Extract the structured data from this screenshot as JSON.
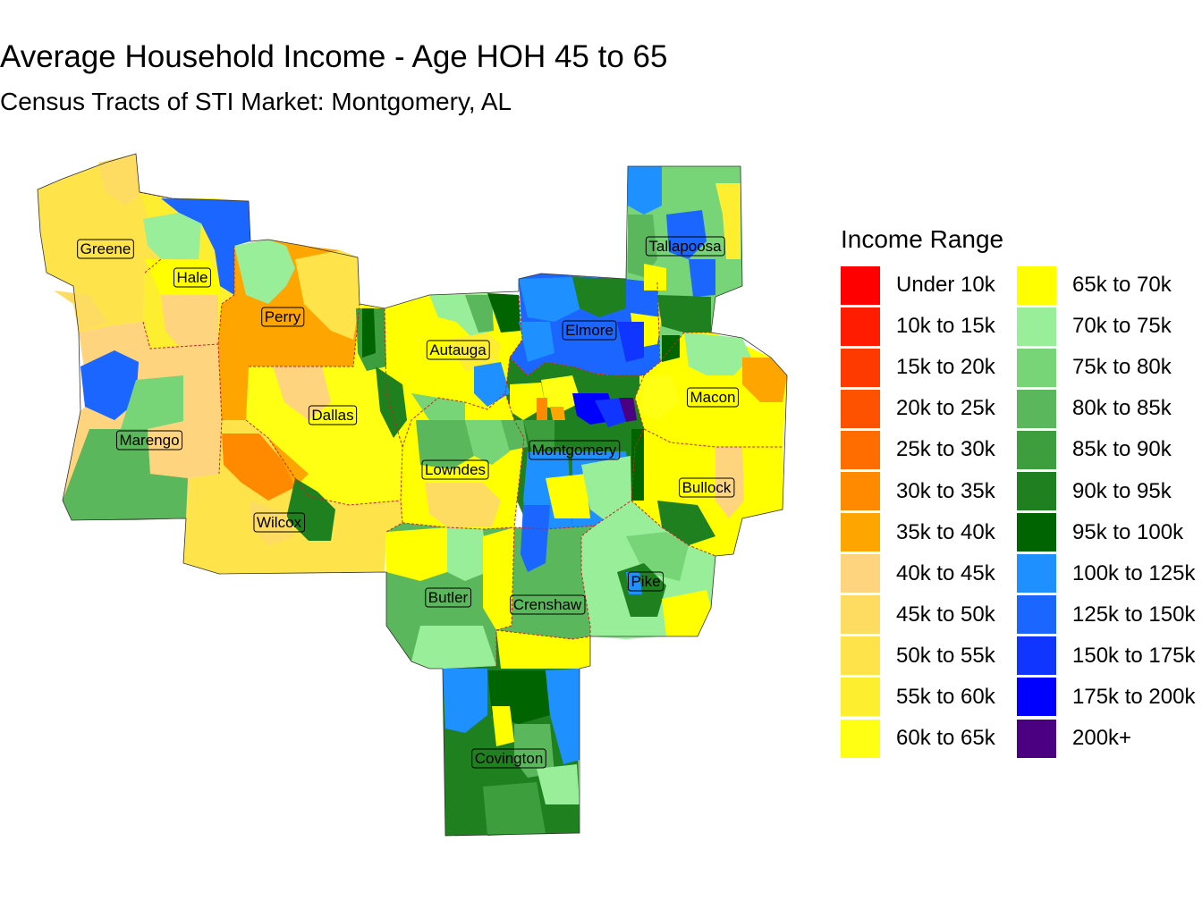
{
  "title": "Average Household Income - Age HOH 45 to 65",
  "subtitle": "Census Tracts of STI Market: Montgomery, AL",
  "legend": {
    "title": "Income Range",
    "items": [
      {
        "label": "Under 10k",
        "color": "#ff0000"
      },
      {
        "label": "10k to 15k",
        "color": "#ff1c00"
      },
      {
        "label": "15k to 20k",
        "color": "#ff3a00"
      },
      {
        "label": "20k to 25k",
        "color": "#ff5200"
      },
      {
        "label": "25k to 30k",
        "color": "#ff6c00"
      },
      {
        "label": "30k to 35k",
        "color": "#ff8a00"
      },
      {
        "label": "35k to 40k",
        "color": "#ffa500"
      },
      {
        "label": "40k to 45k",
        "color": "#fed47f"
      },
      {
        "label": "45k to 50k",
        "color": "#fedc62"
      },
      {
        "label": "50k to 55k",
        "color": "#fee44a"
      },
      {
        "label": "55k to 60k",
        "color": "#feee30"
      },
      {
        "label": "60k to 65k",
        "color": "#ffff14"
      },
      {
        "label": "65k to 70k",
        "color": "#ffff00"
      },
      {
        "label": "70k to 75k",
        "color": "#99ee99"
      },
      {
        "label": "75k to 80k",
        "color": "#77d477"
      },
      {
        "label": "80k to 85k",
        "color": "#5bb75b"
      },
      {
        "label": "85k to 90k",
        "color": "#3c9e3c"
      },
      {
        "label": "90k to 95k",
        "color": "#1f801f"
      },
      {
        "label": "95k to 100k",
        "color": "#006400"
      },
      {
        "label": "100k to 125k",
        "color": "#1e90ff"
      },
      {
        "label": "125k to 150k",
        "color": "#1a66ff"
      },
      {
        "label": "150k to 175k",
        "color": "#0f35ff"
      },
      {
        "label": "175k to 200k",
        "color": "#0000ff"
      },
      {
        "label": "200k+",
        "color": "#4b0082"
      }
    ]
  },
  "counties": [
    {
      "name": "Greene",
      "income_range": "45k to 50k"
    },
    {
      "name": "Hale",
      "income_range": "60k to 65k"
    },
    {
      "name": "Perry",
      "income_range": "35k to 40k"
    },
    {
      "name": "Marengo",
      "income_range": "45k to 50k"
    },
    {
      "name": "Dallas",
      "income_range": "60k to 65k"
    },
    {
      "name": "Wilcox",
      "income_range": "50k to 55k"
    },
    {
      "name": "Autauga",
      "income_range": "65k to 70k"
    },
    {
      "name": "Elmore",
      "income_range": "125k to 150k"
    },
    {
      "name": "Tallapoosa",
      "income_range": "75k to 80k"
    },
    {
      "name": "Macon",
      "income_range": "65k to 70k"
    },
    {
      "name": "Montgomery",
      "income_range": "90k to 95k"
    },
    {
      "name": "Lowndes",
      "income_range": "65k to 70k"
    },
    {
      "name": "Bullock",
      "income_range": "65k to 70k"
    },
    {
      "name": "Butler",
      "income_range": "80k to 85k"
    },
    {
      "name": "Crenshaw",
      "income_range": "80k to 85k"
    },
    {
      "name": "Pike",
      "income_range": "70k to 75k"
    },
    {
      "name": "Covington",
      "income_range": "90k to 95k"
    }
  ]
}
